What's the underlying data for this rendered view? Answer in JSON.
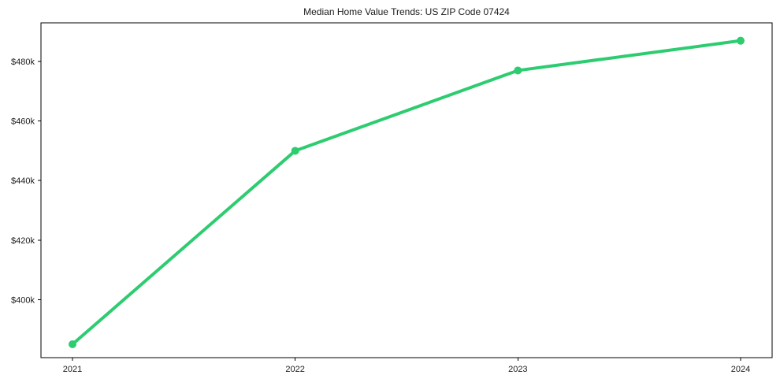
{
  "chart_data": {
    "type": "line",
    "title": "Median Home Value Trends: US ZIP Code 07424",
    "categories": [
      "2021",
      "2022",
      "2023",
      "2024"
    ],
    "series": [
      {
        "name": "Median Home Value",
        "values": [
          385000,
          450000,
          477000,
          487000
        ],
        "color": "#2ecc71",
        "marker": "circle"
      }
    ],
    "yticks": [
      {
        "value": 400000,
        "label": "$400k"
      },
      {
        "value": 420000,
        "label": "$420k"
      },
      {
        "value": 440000,
        "label": "$440k"
      },
      {
        "value": 460000,
        "label": "$460k"
      },
      {
        "value": 480000,
        "label": "$480k"
      }
    ],
    "ylim": [
      380500,
      493000
    ],
    "xlabel": "",
    "ylabel": "",
    "grid": false,
    "legend_position": "none"
  },
  "colors": {
    "line": "#2ecc71",
    "axis": "#000000",
    "text": "#1a1a1a",
    "background": "#ffffff"
  }
}
